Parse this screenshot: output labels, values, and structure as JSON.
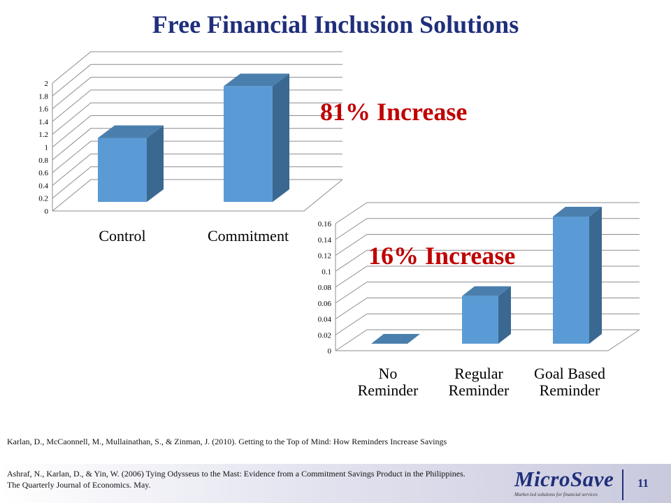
{
  "page_title": "Free Financial Inclusion Solutions",
  "colors": {
    "title": "#1f2f7a",
    "callout": "#c00000",
    "bar_front": "#5b9bd5",
    "bar_side": "#3a6890",
    "bar_top": "#4a7fad"
  },
  "chart_data": [
    {
      "type": "bar",
      "categories": [
        "Control",
        "Commitment"
      ],
      "values": [
        1.0,
        1.81
      ],
      "ylim": [
        0,
        2
      ],
      "yticks": [
        "0",
        "0.2",
        "0.4",
        "0.6",
        "0.8",
        "1",
        "1.2",
        "1.4",
        "1.6",
        "1.8",
        "2"
      ],
      "grid": true,
      "annotation": "81% Increase"
    },
    {
      "type": "bar",
      "categories": [
        [
          "No",
          "Reminder"
        ],
        [
          "Regular",
          "Reminder"
        ],
        [
          "Goal Based",
          "Reminder"
        ]
      ],
      "values": [
        0.0,
        0.06,
        0.16
      ],
      "ylim": [
        0,
        0.16
      ],
      "yticks": [
        "0",
        "0.02",
        "0.04",
        "0.06",
        "0.08",
        "0.1",
        "0.12",
        "0.14",
        "0.16"
      ],
      "grid": true,
      "annotation": "16% Increase"
    }
  ],
  "references": [
    "Karlan, D., McCaonnell, M., Mullainathan, S., & Zinman, J. (2010). Getting to the Top of Mind: How Reminders Increase Savings",
    "Ashraf, N., Karlan, D., & Yin, W. (2006) Tying Odysseus to the Mast: Evidence from a Commitment Savings Product in the Philippines. The Quarterly Journal of Economics. May."
  ],
  "logo": {
    "name": "MicroSave",
    "tagline": "Market-led solutions for financial services"
  },
  "page_number": "11"
}
